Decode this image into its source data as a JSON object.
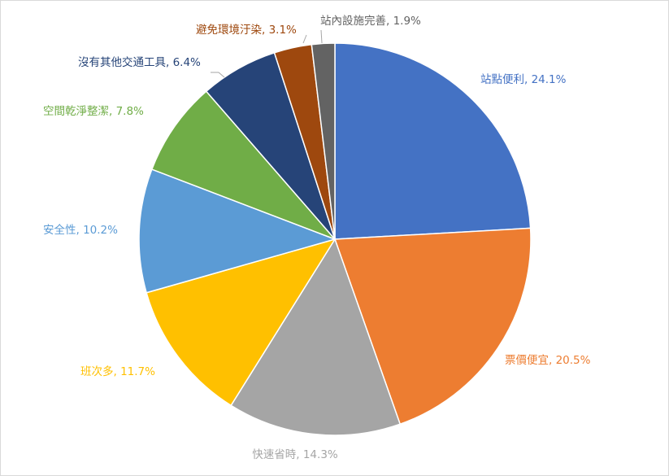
{
  "chart_data": {
    "type": "pie",
    "title": "",
    "slices": [
      {
        "label": "站點便利",
        "value": 24.1,
        "text": "站點便利, 24.1%",
        "color": "#4472C4",
        "label_color": "#4472C4"
      },
      {
        "label": "票價便宜",
        "value": 20.5,
        "text": "票價便宜, 20.5%",
        "color": "#ED7D31",
        "label_color": "#ED7D31"
      },
      {
        "label": "快速省時",
        "value": 14.3,
        "text": "快速省時, 14.3%",
        "color": "#A5A5A5",
        "label_color": "#A5A5A5"
      },
      {
        "label": "班次多",
        "value": 11.7,
        "text": "班次多, 11.7%",
        "color": "#FFC000",
        "label_color": "#FFC000"
      },
      {
        "label": "安全性",
        "value": 10.2,
        "text": "安全性, 10.2%",
        "color": "#5B9BD5",
        "label_color": "#5B9BD5"
      },
      {
        "label": "空間乾淨整潔",
        "value": 7.8,
        "text": "空間乾淨整潔, 7.8%",
        "color": "#70AD47",
        "label_color": "#70AD47"
      },
      {
        "label": "沒有其他交通工具",
        "value": 6.4,
        "text": "沒有其他交通工具, 6.4%",
        "color": "#264478",
        "label_color": "#264478"
      },
      {
        "label": "避免環境汙染",
        "value": 3.1,
        "text": "避免環境汙染, 3.1%",
        "color": "#9E480E",
        "label_color": "#9E480E"
      },
      {
        "label": "站內設施完善",
        "value": 1.9,
        "text": "站內設施完善, 1.9%",
        "color": "#636363",
        "label_color": "#636363"
      }
    ],
    "start_angle": "12 o'clock",
    "direction": "clockwise",
    "legend": "none"
  }
}
